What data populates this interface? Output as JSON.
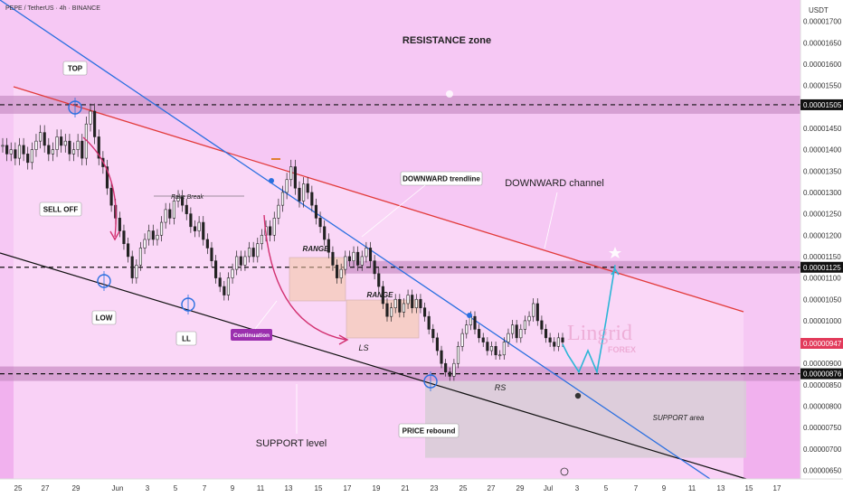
{
  "header": {
    "symbol_line": "PEPE / TetherUS · 4h · BINANCE",
    "currency": "USDT"
  },
  "watermark": {
    "brand": "Lingrid",
    "sub": "FOREX"
  },
  "colors": {
    "background": "#f6c8f4",
    "lower_band": "#f1b1ee",
    "channel_fill": "#fbdcf8",
    "resistance_line": "#e23a3a",
    "trendline": "#2a6fe0",
    "support_line": "#111111",
    "candle_up": "#2a2a2a",
    "candle_down": "#2a2a2a",
    "projection": "#2bb5d6",
    "last_price_tag": "#e23a5a",
    "label_tag": "#111111",
    "continuation_tag": "#9b2fae",
    "level_band": "#c98fc4",
    "support_area": "#d8cdd6"
  },
  "annotations": {
    "resistance_zone": "RESISTANCE zone",
    "top": "TOP",
    "sell_off": "SELL OFF",
    "low": "LOW",
    "ll": "LL",
    "fake_break": "Fake Break",
    "continuation": "Continuation",
    "range1": "RANGE",
    "range2": "RANGE",
    "ls": "LS",
    "rs": "RS",
    "downward_trendline": "DOWNWARD trendline",
    "downward_channel": "DOWNWARD channel",
    "price_rebound": "PRICE rebound",
    "support_level": "SUPPORT level",
    "support_area": "SUPPORT area"
  },
  "chart_data": {
    "type": "candlestick",
    "ylim": [
      6.3e-06,
      1.75e-05
    ],
    "y_ticks": [
      "0.00001700",
      "0.00001650",
      "0.00001600",
      "0.00001550",
      "0.00001450",
      "0.00001400",
      "0.00001350",
      "0.00001300",
      "0.00001250",
      "0.00001200",
      "0.00001150",
      "0.00001100",
      "0.00001050",
      "0.00001000",
      "0.00000900",
      "0.00000850",
      "0.00000800",
      "0.00000750",
      "0.00000700",
      "0.00000650"
    ],
    "y_tick_values": [
      1.7e-05,
      1.65e-05,
      1.6e-05,
      1.55e-05,
      1.45e-05,
      1.4e-05,
      1.35e-05,
      1.3e-05,
      1.25e-05,
      1.2e-05,
      1.15e-05,
      1.1e-05,
      1.05e-05,
      1e-05,
      9e-06,
      8.5e-06,
      8e-06,
      7.5e-06,
      7e-06,
      6.5e-06
    ],
    "x_ticks": [
      "25",
      "27",
      "29",
      "Jun",
      "3",
      "5",
      "7",
      "9",
      "11",
      "13",
      "15",
      "17",
      "19",
      "21",
      "23",
      "25",
      "27",
      "29",
      "Jul",
      "3",
      "5",
      "7",
      "9",
      "11",
      "13",
      "15",
      "17"
    ],
    "price_tags": [
      {
        "label": "0.00001505",
        "value": 1.505e-05,
        "kind": "level"
      },
      {
        "label": "0.00001125",
        "value": 1.125e-05,
        "kind": "level"
      },
      {
        "label": "0.00000947",
        "value": 9.47e-06,
        "kind": "last"
      },
      {
        "label": "0.00000876",
        "value": 8.76e-06,
        "kind": "level"
      }
    ],
    "levels": {
      "resistance": 1.505e-05,
      "mid": 1.125e-05,
      "support": 8.76e-06
    },
    "closes": [
      1.41e-05,
      1.39e-05,
      1.4e-05,
      1.38e-05,
      1.41e-05,
      1.39e-05,
      1.37e-05,
      1.4e-05,
      1.42e-05,
      1.44e-05,
      1.41e-05,
      1.39e-05,
      1.4e-05,
      1.43e-05,
      1.41e-05,
      1.42e-05,
      1.39e-05,
      1.4e-05,
      1.42e-05,
      1.38e-05,
      1.46e-05,
      1.49e-05,
      1.43e-05,
      1.38e-05,
      1.36e-05,
      1.31e-05,
      1.27e-05,
      1.24e-05,
      1.21e-05,
      1.18e-05,
      1.15e-05,
      1.1e-05,
      1.13e-05,
      1.17e-05,
      1.19e-05,
      1.21e-05,
      1.19e-05,
      1.2e-05,
      1.23e-05,
      1.26e-05,
      1.24e-05,
      1.28e-05,
      1.29e-05,
      1.27e-05,
      1.25e-05,
      1.22e-05,
      1.21e-05,
      1.23e-05,
      1.19e-05,
      1.17e-05,
      1.14e-05,
      1.1e-05,
      1.08e-05,
      1.06e-05,
      1.1e-05,
      1.12e-05,
      1.15e-05,
      1.13e-05,
      1.15e-05,
      1.17e-05,
      1.15e-05,
      1.18e-05,
      1.2e-05,
      1.22e-05,
      1.2e-05,
      1.24e-05,
      1.27e-05,
      1.3e-05,
      1.33e-05,
      1.36e-05,
      1.31e-05,
      1.28e-05,
      1.32e-05,
      1.3e-05,
      1.27e-05,
      1.24e-05,
      1.22e-05,
      1.19e-05,
      1.16e-05,
      1.13e-05,
      1.1e-05,
      1.12e-05,
      1.15e-05,
      1.14e-05,
      1.16e-05,
      1.13e-05,
      1.15e-05,
      1.17e-05,
      1.14e-05,
      1.11e-05,
      1.08e-05,
      1.04e-05,
      1.01e-05,
      1.03e-05,
      1.05e-05,
      1.02e-05,
      1.04e-05,
      1.06e-05,
      1.03e-05,
      1.05e-05,
      1.03e-05,
      1.01e-05,
      9.8e-06,
      9.6e-06,
      9.3e-06,
      9e-06,
      8.8e-06,
      8.7e-06,
      9e-06,
      9.4e-06,
      9.7e-06,
      9.9e-06,
      1.01e-05,
      9.8e-06,
      9.6e-06,
      9.5e-06,
      9.3e-06,
      9.4e-06,
      9.2e-06,
      9.2e-06,
      9.5e-06,
      9.7e-06,
      9.9e-06,
      9.6e-06,
      9.8e-06,
      1e-05,
      1.01e-05,
      1.04e-05,
      1e-05,
      9.8e-06,
      9.6e-06,
      9.5e-06,
      9.4e-06,
      9.6e-06,
      9.5e-06
    ],
    "projection": [
      {
        "x": "Jul 3",
        "y": 9.45e-06
      },
      {
        "x": "Jul 3",
        "y": 9.2e-06
      },
      {
        "x": "Jul 3",
        "y": 8.8e-06
      },
      {
        "x": "Jul 4",
        "y": 9.3e-06
      },
      {
        "x": "Jul 4",
        "y": 8.8e-06
      },
      {
        "x": "Jul 5",
        "y": 1e-05
      },
      {
        "x": "Jul 5",
        "y": 1.13e-05
      }
    ]
  }
}
